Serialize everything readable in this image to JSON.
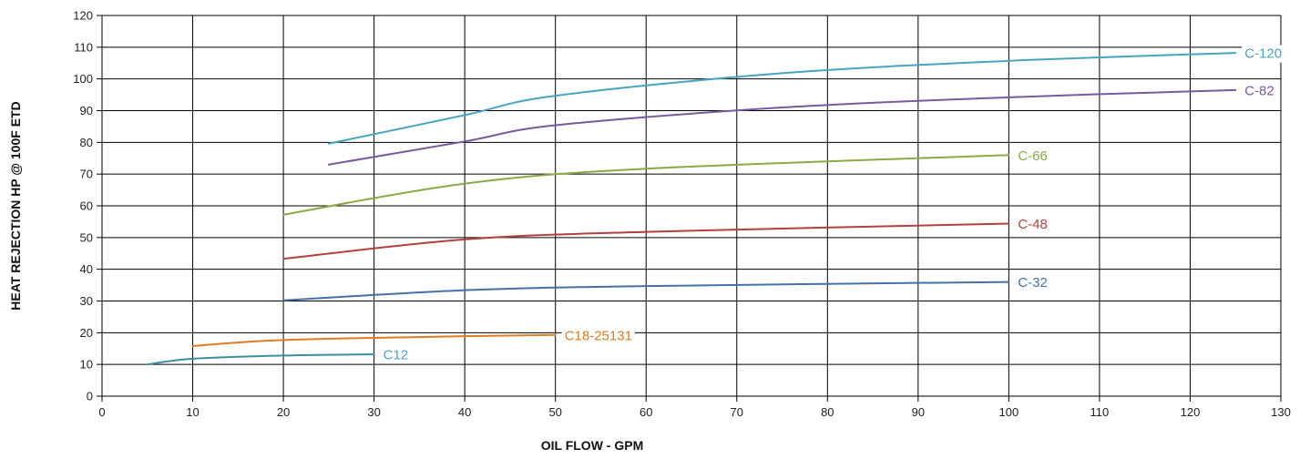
{
  "chart_data": {
    "type": "line",
    "title": "",
    "xlabel": "OIL FLOW - GPM",
    "ylabel": "HEAT REJECTION HP @ 100F ETD",
    "xlim": [
      0,
      130
    ],
    "ylim": [
      0,
      120
    ],
    "x_ticks": [
      0,
      10,
      20,
      30,
      40,
      50,
      60,
      70,
      80,
      90,
      100,
      110,
      120,
      130
    ],
    "y_ticks": [
      0,
      10,
      20,
      30,
      40,
      50,
      60,
      70,
      80,
      90,
      100,
      110,
      120
    ],
    "grid": true,
    "legend": "none",
    "series": [
      {
        "name": "C12",
        "color": "#3b8fa3",
        "label_color": "#4aa8c4",
        "points": [
          [
            5,
            10
          ],
          [
            10,
            11.8
          ],
          [
            20,
            12.8
          ],
          [
            30,
            13.2
          ]
        ]
      },
      {
        "name": "C18-25131",
        "color": "#e07b1f",
        "points": [
          [
            10,
            15.8
          ],
          [
            20,
            17.7
          ],
          [
            40,
            18.9
          ],
          [
            50,
            19.3
          ]
        ]
      },
      {
        "name": "C-32",
        "color": "#4472a8",
        "points": [
          [
            20,
            30.2
          ],
          [
            40,
            33.4
          ],
          [
            60,
            34.7
          ],
          [
            100,
            36
          ]
        ]
      },
      {
        "name": "C-48",
        "color": "#b5403d",
        "points": [
          [
            20,
            43.3
          ],
          [
            40,
            49.4
          ],
          [
            60,
            51.8
          ],
          [
            100,
            54.4
          ]
        ]
      },
      {
        "name": "C-66",
        "color": "#8aaa46",
        "points": [
          [
            20,
            57.2
          ],
          [
            40,
            67
          ],
          [
            60,
            71.7
          ],
          [
            100,
            76
          ]
        ]
      },
      {
        "name": "C-82",
        "color": "#7a5a9e",
        "points": [
          [
            25,
            73
          ],
          [
            40,
            80.3
          ],
          [
            50,
            85.4
          ],
          [
            75,
            91
          ],
          [
            100,
            94.2
          ],
          [
            125,
            96.5
          ]
        ]
      },
      {
        "name": "C-120",
        "color": "#48a4c0",
        "points": [
          [
            25,
            79.6
          ],
          [
            40,
            88.6
          ],
          [
            50,
            94.7
          ],
          [
            75,
            101.8
          ],
          [
            100,
            105.7
          ],
          [
            125,
            108.2
          ]
        ]
      }
    ]
  }
}
